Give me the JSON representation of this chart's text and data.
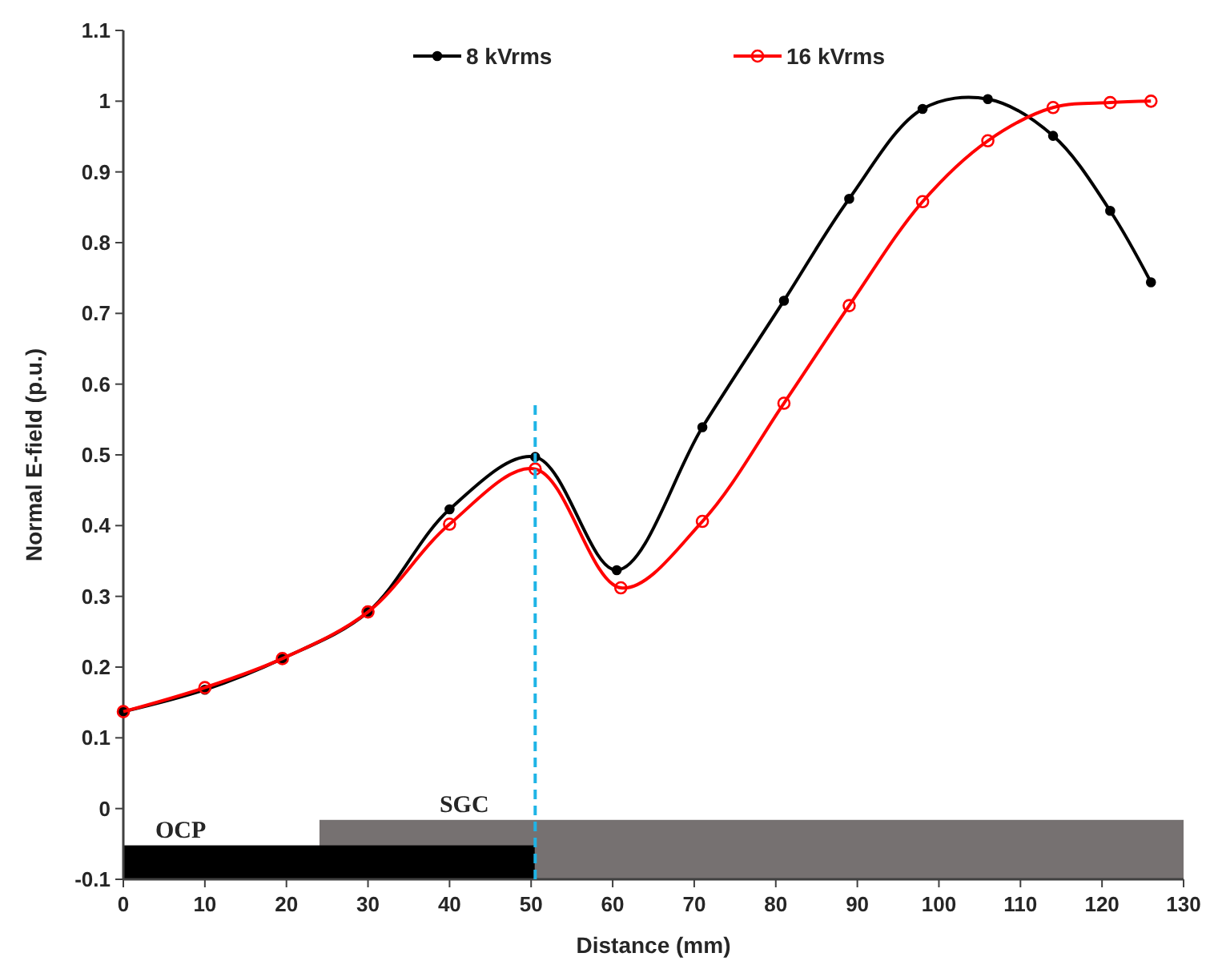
{
  "chart_data": {
    "type": "line",
    "xlabel": "Distance (mm)",
    "ylabel": "Normal E-field (p.u.)",
    "xlim": [
      0,
      130
    ],
    "xticks": [
      0,
      10,
      20,
      30,
      40,
      50,
      60,
      70,
      80,
      90,
      100,
      110,
      120,
      130
    ],
    "ylim": [
      -0.1,
      1.1
    ],
    "yticks": [
      -0.1,
      0,
      0.1,
      0.2,
      0.3,
      0.4,
      0.5,
      0.6,
      0.7,
      0.8,
      0.9,
      1,
      1.1
    ],
    "grid": false,
    "legend": "top right",
    "marker": "circle",
    "line_style": "solid",
    "series": [
      {
        "name": "8 kVrms",
        "color": "#000000",
        "x": [
          0,
          10,
          19.5,
          30,
          40,
          50.5,
          60.5,
          71,
          81,
          89,
          98,
          106,
          114,
          121,
          126
        ],
        "values": [
          0.137,
          0.168,
          0.212,
          0.278,
          0.423,
          0.497,
          0.337,
          0.539,
          0.718,
          0.862,
          0.989,
          1.003,
          0.951,
          0.845,
          0.744
        ]
      },
      {
        "name": "16 kVrms",
        "color": "#ff0000",
        "x": [
          0,
          10,
          19.5,
          30,
          40,
          50.5,
          61,
          71,
          81,
          89,
          98,
          106,
          114,
          121,
          126
        ],
        "values": [
          0.137,
          0.171,
          0.212,
          0.278,
          0.402,
          0.48,
          0.312,
          0.406,
          0.573,
          0.711,
          0.858,
          0.944,
          0.991,
          0.998,
          1.0
        ]
      }
    ],
    "ref_lines": [
      {
        "axis": "x",
        "value": 50.5,
        "color": "#1fb4e6",
        "line_style": "dashed"
      }
    ],
    "annotations": [
      "SGC",
      "OCP"
    ]
  }
}
